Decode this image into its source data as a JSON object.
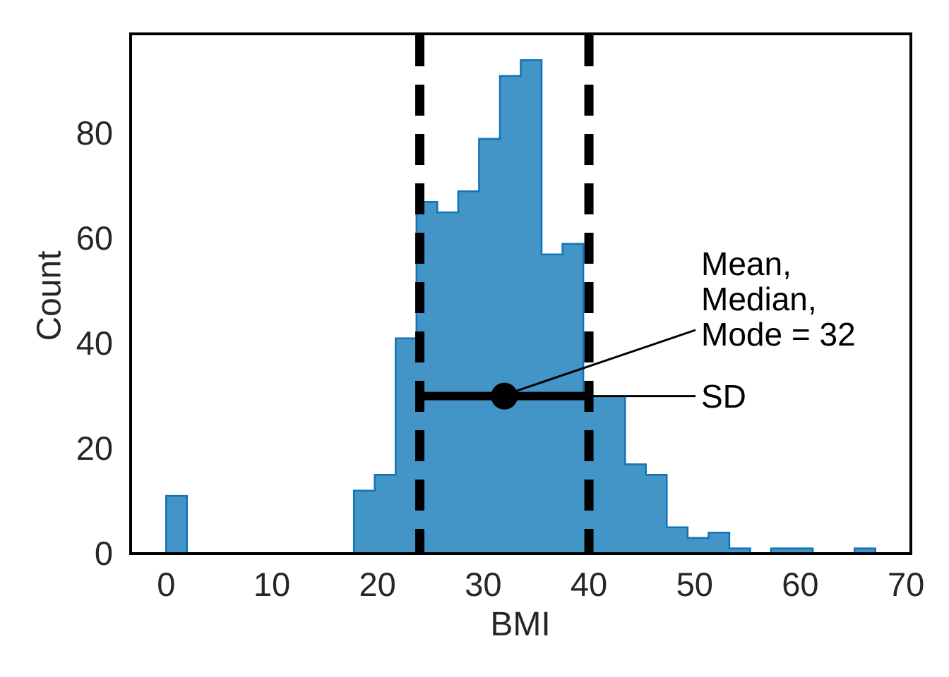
{
  "figure": {
    "background": "#ffffff"
  },
  "axes": {
    "xlabel": "BMI",
    "ylabel": "Count",
    "tick_label_color": "#262626",
    "spine_color": "#000000",
    "annotation_color": "#000000"
  },
  "chart_data": {
    "type": "bar",
    "subtype": "histogram",
    "title": "",
    "xlabel": "BMI",
    "ylabel": "Count",
    "grid": "off",
    "legend": "none",
    "data_range": [
      0,
      67.1
    ],
    "bins": 34,
    "bin_width": 1.9735,
    "counts": [
      11,
      0,
      0,
      0,
      0,
      0,
      0,
      0,
      0,
      12,
      15,
      41,
      67,
      65,
      69,
      79,
      91,
      94,
      57,
      59,
      30,
      30,
      17,
      15,
      5,
      3,
      4,
      1,
      0,
      1,
      1,
      0,
      0,
      1
    ],
    "total_n": 768,
    "xlim": [
      -3.36,
      70.46
    ],
    "ylim": [
      0,
      99
    ],
    "xticks": [
      0,
      10,
      20,
      30,
      40,
      50,
      60,
      70
    ],
    "yticks": [
      0,
      20,
      40,
      60,
      80
    ],
    "bar_fill_color": "#4295c6",
    "bar_edge_color": "#1173b6",
    "stat_annotations": {
      "mean": 32,
      "median": 32,
      "mode": 32,
      "sd": 8,
      "sd_lower_line_x": 24,
      "sd_upper_line_x": 40,
      "sd_bar_y_count": 30,
      "marker_x": 32
    }
  },
  "annotations": {
    "mmm": {
      "line1": "Mean,",
      "line2": "Median,",
      "line3": "Mode = 32"
    },
    "sd_label": "SD"
  }
}
